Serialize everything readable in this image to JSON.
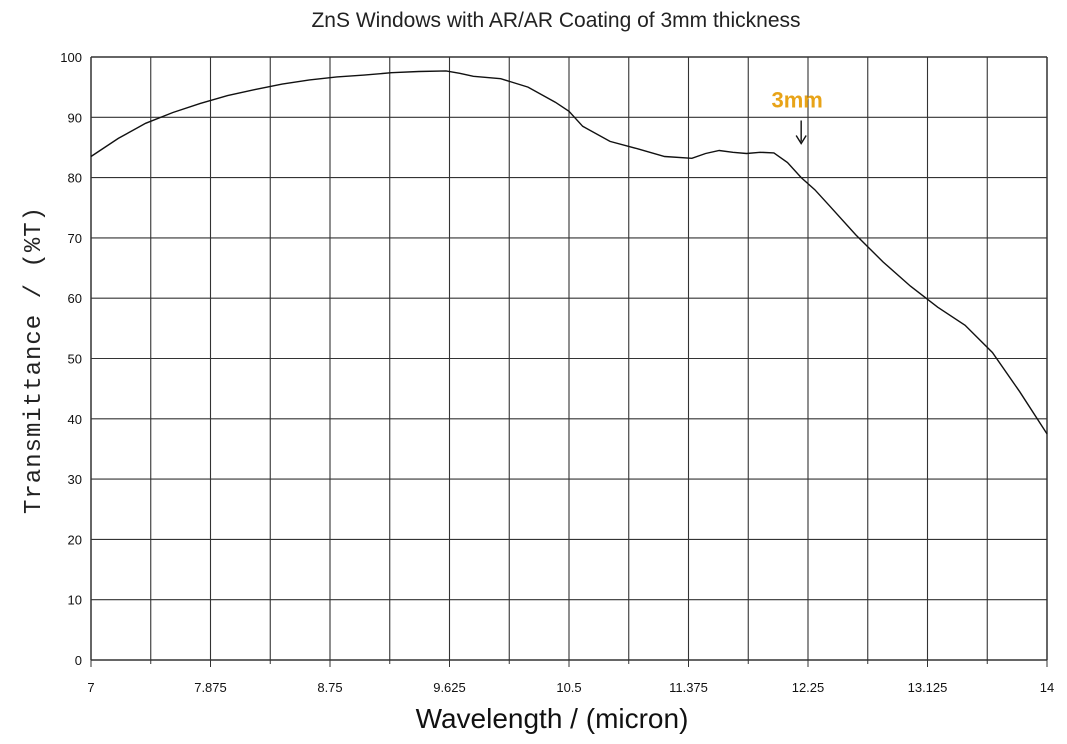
{
  "chart_data": {
    "type": "line",
    "title": "ZnS Windows with AR/AR Coating of 3mm thickness",
    "xlabel": "Wavelength / (micron)",
    "ylabel": "Transmittance  /  (%T)",
    "xlim": [
      7,
      14
    ],
    "ylim": [
      0,
      100
    ],
    "xticks": [
      "7",
      "7.875",
      "8.75",
      "9.625",
      "10.5",
      "11.375",
      "12.25",
      "13.125",
      "14"
    ],
    "yticks": [
      "0",
      "10",
      "20",
      "30",
      "40",
      "50",
      "60",
      "70",
      "80",
      "90",
      "100"
    ],
    "grid": true,
    "series": [
      {
        "x": [
          7.0,
          7.2,
          7.4,
          7.6,
          7.8,
          8.0,
          8.2,
          8.4,
          8.6,
          8.8,
          9.0,
          9.2,
          9.4,
          9.6,
          9.7,
          9.8,
          10.0,
          10.2,
          10.4,
          10.5,
          10.6,
          10.8,
          11.0,
          11.2,
          11.4,
          11.5,
          11.6,
          11.7,
          11.8,
          11.9,
          12.0,
          12.1,
          12.2,
          12.3,
          12.4,
          12.6,
          12.8,
          13.0,
          13.2,
          13.4,
          13.6,
          13.8,
          14.0
        ],
        "y": [
          83.5,
          86.5,
          89.0,
          90.8,
          92.3,
          93.6,
          94.6,
          95.5,
          96.2,
          96.7,
          97.0,
          97.4,
          97.6,
          97.7,
          97.3,
          96.8,
          96.4,
          95.0,
          92.5,
          91.0,
          88.5,
          86.0,
          84.8,
          83.5,
          83.2,
          84.0,
          84.5,
          84.2,
          84.0,
          84.2,
          84.1,
          82.5,
          80.0,
          78.0,
          75.5,
          70.5,
          66.0,
          62.0,
          58.5,
          55.5,
          51.0,
          44.5,
          37.5
        ]
      }
    ],
    "annotations": [
      {
        "text": "3mm",
        "x": 12.2,
        "y": 83.0,
        "color": "#e8a317"
      }
    ]
  }
}
